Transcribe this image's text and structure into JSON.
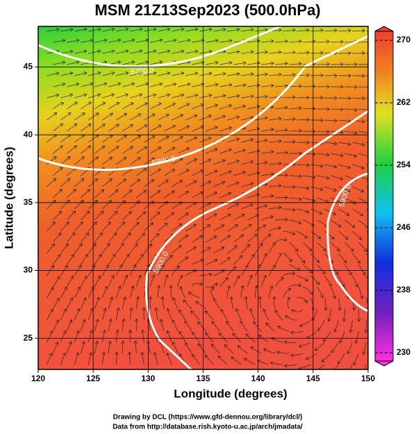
{
  "chart_data": {
    "type": "streamline",
    "title": "MSM 21Z13Sep2023 (500.0hPa)",
    "xlabel": "Longitude (degrees)",
    "ylabel": "Latitude  (degrees)",
    "xlim": [
      120,
      150
    ],
    "ylim": [
      22.7,
      48
    ],
    "xticks": [
      120,
      125,
      130,
      135,
      140,
      145,
      150
    ],
    "yticks": [
      25,
      30,
      35,
      40,
      45
    ],
    "grid": true,
    "colorbar": {
      "lim": [
        230,
        270
      ],
      "ticks": [
        230,
        238,
        246,
        254,
        262,
        270
      ]
    },
    "contour_labels": [
      "5700.0",
      "5800.0",
      "5900.0",
      "5900.0"
    ],
    "credits": [
      "Drawing by DCL (https://www.gfd-dennou.org/library/dcl/)",
      "Data from http://database.rish.kyoto-u.ac.jp/arch/jmadata/"
    ]
  }
}
